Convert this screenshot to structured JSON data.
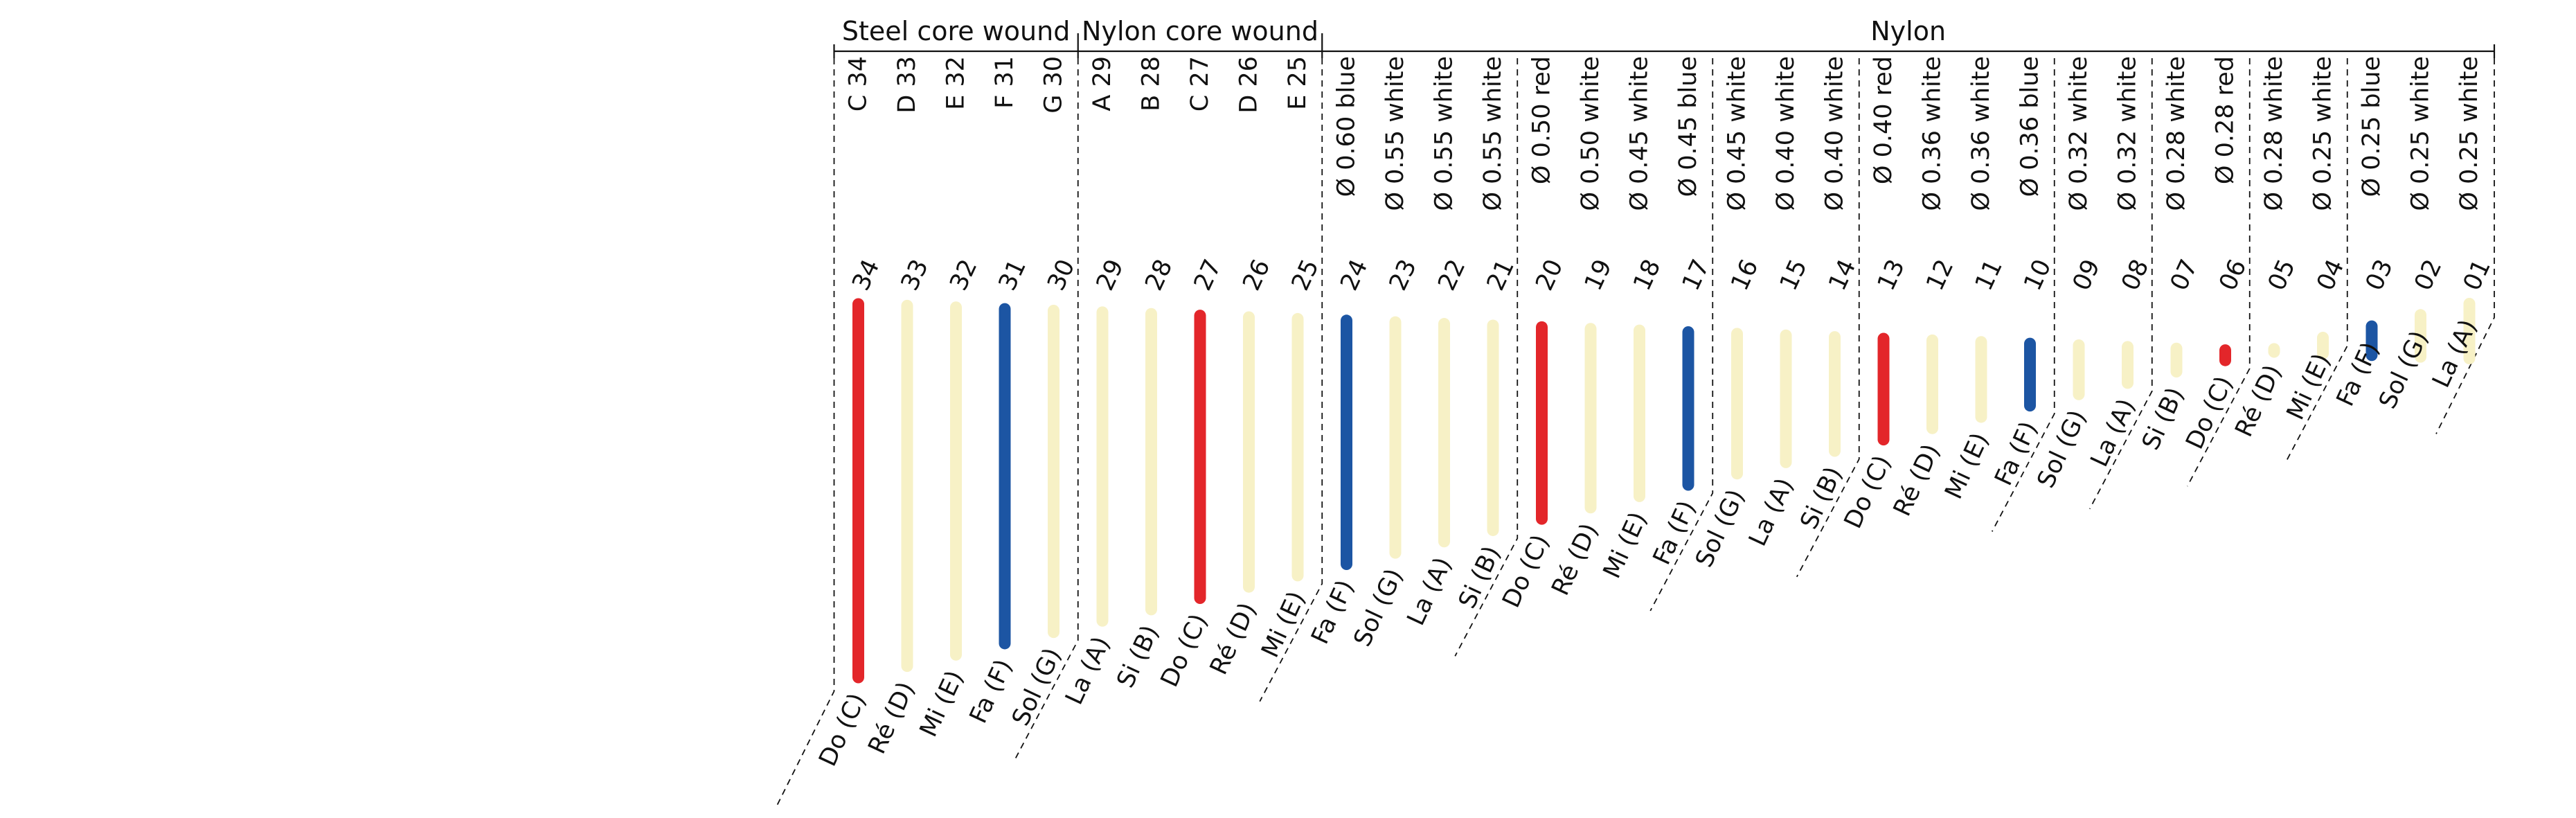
{
  "groups": [
    {
      "label": "Steel core wound",
      "first": 0,
      "last": 4
    },
    {
      "label": "Nylon core wound",
      "first": 5,
      "last": 9
    },
    {
      "label": "Nylon",
      "first": 10,
      "last": 33
    }
  ],
  "colors": {
    "red": "#e3262a",
    "blue": "#1c55a3",
    "white": "#f7f1c6",
    "line": "#111111"
  },
  "strings": [
    {
      "num": "34",
      "spec": "C 34",
      "note": "Do (C)",
      "color": "red"
    },
    {
      "num": "33",
      "spec": "D 33",
      "note": "Ré (D)",
      "color": "white"
    },
    {
      "num": "32",
      "spec": "E 32",
      "note": "Mi (E)",
      "color": "white"
    },
    {
      "num": "31",
      "spec": "F 31",
      "note": "Fa (F)",
      "color": "blue"
    },
    {
      "num": "30",
      "spec": "G 30",
      "note": "Sol (G)",
      "color": "white"
    },
    {
      "num": "29",
      "spec": "A 29",
      "note": "La (A)",
      "color": "white"
    },
    {
      "num": "28",
      "spec": "B 28",
      "note": "Si (B)",
      "color": "white"
    },
    {
      "num": "27",
      "spec": "C 27",
      "note": "Do (C)",
      "color": "red"
    },
    {
      "num": "26",
      "spec": "D 26",
      "note": "Ré (D)",
      "color": "white"
    },
    {
      "num": "25",
      "spec": "E 25",
      "note": "Mi (E)",
      "color": "white"
    },
    {
      "num": "24",
      "spec": "Ø 0.60 blue",
      "note": "Fa (F)",
      "color": "blue"
    },
    {
      "num": "23",
      "spec": "Ø 0.55 white",
      "note": "Sol (G)",
      "color": "white"
    },
    {
      "num": "22",
      "spec": "Ø 0.55 white",
      "note": "La (A)",
      "color": "white"
    },
    {
      "num": "21",
      "spec": "Ø 0.55 white",
      "note": "Si (B)",
      "color": "white"
    },
    {
      "num": "20",
      "spec": "Ø 0.50 red",
      "note": "Do (C)",
      "color": "red"
    },
    {
      "num": "19",
      "spec": "Ø 0.50 white",
      "note": "Ré (D)",
      "color": "white"
    },
    {
      "num": "18",
      "spec": "Ø 0.45 white",
      "note": "Mi (E)",
      "color": "white"
    },
    {
      "num": "17",
      "spec": "Ø 0.45 blue",
      "note": "Fa (F)",
      "color": "blue"
    },
    {
      "num": "16",
      "spec": "Ø 0.45 white",
      "note": "Sol (G)",
      "color": "white"
    },
    {
      "num": "15",
      "spec": "Ø 0.40 white",
      "note": "La (A)",
      "color": "white"
    },
    {
      "num": "14",
      "spec": "Ø 0.40 white",
      "note": "Si (B)",
      "color": "white"
    },
    {
      "num": "13",
      "spec": "Ø 0.40 red",
      "note": "Do (C)",
      "color": "red"
    },
    {
      "num": "12",
      "spec": "Ø 0.36 white",
      "note": "Ré (D)",
      "color": "white"
    },
    {
      "num": "11",
      "spec": "Ø 0.36 white",
      "note": "Mi (E)",
      "color": "white"
    },
    {
      "num": "10",
      "spec": "Ø 0.36 blue",
      "note": "Fa (F)",
      "color": "blue"
    },
    {
      "num": "09",
      "spec": "Ø 0.32 white",
      "note": "Sol (G)",
      "color": "white"
    },
    {
      "num": "08",
      "spec": "Ø 0.32 white",
      "note": "La (A)",
      "color": "white"
    },
    {
      "num": "07",
      "spec": "Ø 0.28 white",
      "note": "Si (B)",
      "color": "white"
    },
    {
      "num": "06",
      "spec": "Ø 0.28 red",
      "note": "Do (C)",
      "color": "red"
    },
    {
      "num": "05",
      "spec": "Ø 0.28 white",
      "note": "Ré (D)",
      "color": "white"
    },
    {
      "num": "04",
      "spec": "Ø 0.25 white",
      "note": "Mi (E)",
      "color": "white"
    },
    {
      "num": "03",
      "spec": "Ø 0.25 blue",
      "note": "Fa (F)",
      "color": "blue"
    },
    {
      "num": "02",
      "spec": "Ø 0.25 white",
      "note": "Sol (G)",
      "color": "white"
    },
    {
      "num": "01",
      "spec": "Ø 0.25 white",
      "note": "La (A)",
      "color": "white"
    }
  ]
}
